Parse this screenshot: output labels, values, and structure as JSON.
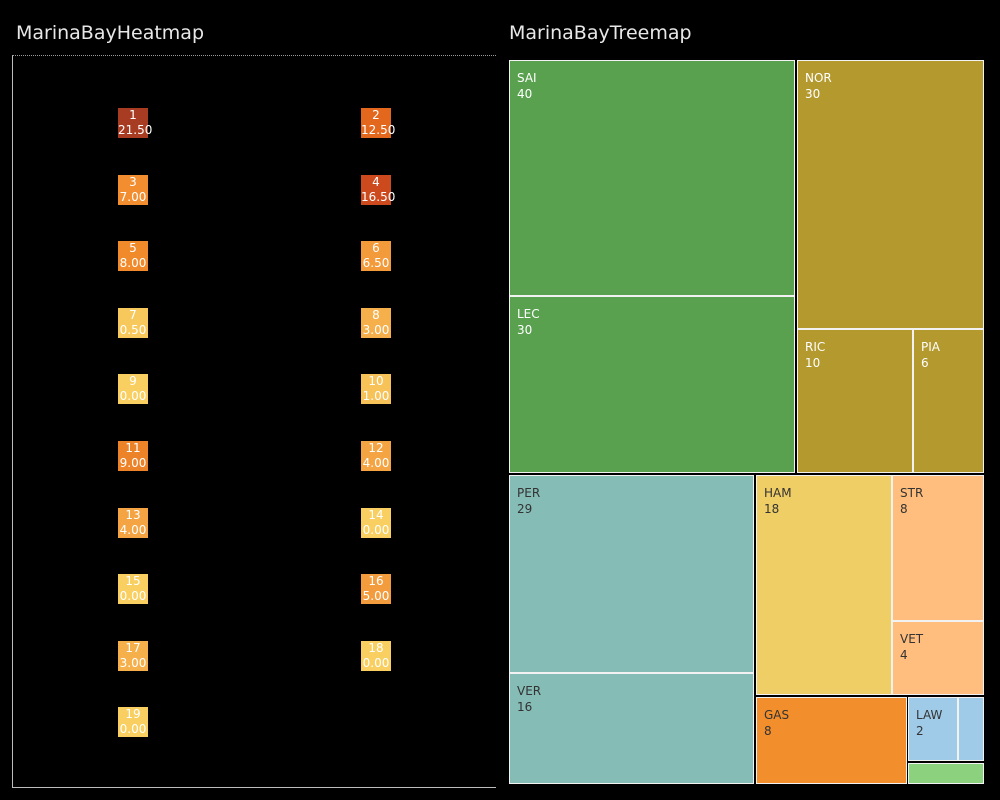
{
  "heatmap": {
    "title": "MarinaBayHeatmap",
    "cells": [
      {
        "id": "1",
        "value": "21.50",
        "color": "#a83c22"
      },
      {
        "id": "2",
        "value": "12.50",
        "color": "#e4671e"
      },
      {
        "id": "3",
        "value": "7.00",
        "color": "#f28e30"
      },
      {
        "id": "4",
        "value": "16.50",
        "color": "#cc4a1e"
      },
      {
        "id": "5",
        "value": "8.00",
        "color": "#f08a2b"
      },
      {
        "id": "6",
        "value": "6.50",
        "color": "#f39a3b"
      },
      {
        "id": "7",
        "value": "0.50",
        "color": "#f7c85b"
      },
      {
        "id": "8",
        "value": "3.00",
        "color": "#f5b04b"
      },
      {
        "id": "9",
        "value": "0.00",
        "color": "#f8cf60"
      },
      {
        "id": "10",
        "value": "1.00",
        "color": "#f7c257"
      },
      {
        "id": "11",
        "value": "9.00",
        "color": "#ed8328"
      },
      {
        "id": "12",
        "value": "4.00",
        "color": "#f4a443"
      },
      {
        "id": "13",
        "value": "4.00",
        "color": "#f4a443"
      },
      {
        "id": "14",
        "value": "0.00",
        "color": "#f8cf60"
      },
      {
        "id": "15",
        "value": "0.00",
        "color": "#f8cf60"
      },
      {
        "id": "16",
        "value": "5.00",
        "color": "#f39c3d"
      },
      {
        "id": "17",
        "value": "3.00",
        "color": "#f5b04b"
      },
      {
        "id": "18",
        "value": "0.00",
        "color": "#f8cf60"
      },
      {
        "id": "19",
        "value": "0.00",
        "color": "#f8cf60"
      }
    ]
  },
  "treemap": {
    "title": "MarinaBayTreemap",
    "groups": [
      {
        "color": "#59a14f",
        "items": [
          {
            "label": "SAI",
            "value": 40
          },
          {
            "label": "LEC",
            "value": 30
          }
        ]
      },
      {
        "color": "#b3992e",
        "items": [
          {
            "label": "NOR",
            "value": 30
          },
          {
            "label": "RIC",
            "value": 10
          },
          {
            "label": "PIA",
            "value": 6
          }
        ]
      },
      {
        "color": "#86bcb6",
        "items": [
          {
            "label": "PER",
            "value": 29
          },
          {
            "label": "VER",
            "value": 16
          }
        ]
      },
      {
        "color": "#f0ce66",
        "items": [
          {
            "label": "HAM",
            "value": 18
          }
        ]
      },
      {
        "color": "#ffbe7d",
        "items": [
          {
            "label": "STR",
            "value": 8
          },
          {
            "label": "VET",
            "value": 4
          }
        ]
      },
      {
        "color": "#f28e2b",
        "items": [
          {
            "label": "GAS",
            "value": 8
          }
        ]
      },
      {
        "color": "#a0cbe8",
        "items": [
          {
            "label": "LAW",
            "value": 2
          },
          {
            "label": "",
            "value": null
          }
        ]
      },
      {
        "color": "#8cd17d",
        "items": [
          {
            "label": "",
            "value": null
          }
        ]
      }
    ]
  },
  "chart_data": [
    {
      "type": "heatmap",
      "title": "MarinaBayHeatmap",
      "categories": [
        "1",
        "2",
        "3",
        "4",
        "5",
        "6",
        "7",
        "8",
        "9",
        "10",
        "11",
        "12",
        "13",
        "14",
        "15",
        "16",
        "17",
        "18",
        "19"
      ],
      "values": [
        21.5,
        12.5,
        7.0,
        16.5,
        8.0,
        6.5,
        0.5,
        3.0,
        0.0,
        1.0,
        9.0,
        4.0,
        4.0,
        0.0,
        0.0,
        5.0,
        3.0,
        0.0,
        0.0
      ]
    },
    {
      "type": "treemap",
      "title": "MarinaBayTreemap",
      "categories": [
        "SAI",
        "LEC",
        "NOR",
        "RIC",
        "PIA",
        "PER",
        "VER",
        "HAM",
        "STR",
        "VET",
        "GAS",
        "LAW"
      ],
      "values": [
        40,
        30,
        30,
        10,
        6,
        29,
        16,
        18,
        8,
        4,
        8,
        2
      ]
    }
  ]
}
